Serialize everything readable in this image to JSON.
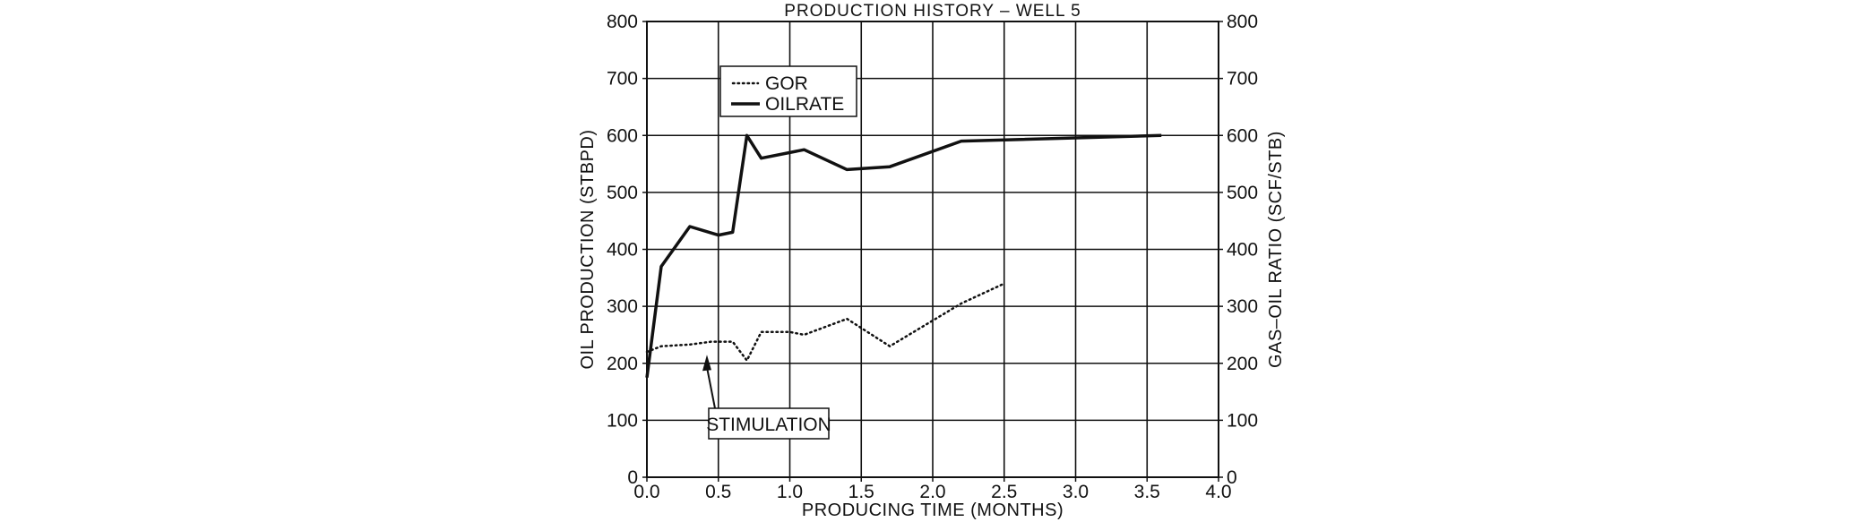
{
  "chart_data": {
    "type": "line",
    "title": "PRODUCTION HISTORY – WELL 5",
    "xlabel": "PRODUCING TIME (MONTHS)",
    "ylabel_left": "OIL PRODUCTION (STBPD)",
    "ylabel_right": "GAS–OIL RATIO (SCF/STB)",
    "xlim": [
      0,
      4.0
    ],
    "ylim_left": [
      0,
      800
    ],
    "ylim_right": [
      0,
      800
    ],
    "x_ticks": [
      "0.0",
      "0.5",
      "1.0",
      "1.5",
      "2.0",
      "2.5",
      "3.0",
      "3.5",
      "4.0"
    ],
    "y_ticks": [
      "0",
      "100",
      "200",
      "300",
      "400",
      "500",
      "600",
      "700",
      "800"
    ],
    "grid": true,
    "legend_placement": "top-left",
    "series": [
      {
        "name": "GOR",
        "style": "dotted",
        "axis": "right",
        "x": [
          0.0,
          0.1,
          0.3,
          0.45,
          0.6,
          0.7,
          0.8,
          1.0,
          1.1,
          1.4,
          1.7,
          2.2,
          2.5
        ],
        "y": [
          220,
          230,
          233,
          238,
          238,
          205,
          255,
          255,
          250,
          278,
          230,
          305,
          340
        ]
      },
      {
        "name": "OILRATE",
        "style": "solid",
        "axis": "left",
        "x": [
          0.0,
          0.1,
          0.3,
          0.5,
          0.6,
          0.7,
          0.8,
          1.1,
          1.4,
          1.7,
          2.2,
          3.6
        ],
        "y": [
          175,
          370,
          440,
          425,
          430,
          600,
          560,
          575,
          540,
          545,
          590,
          600
        ]
      }
    ],
    "annotations": [
      {
        "text": "STIMULATION",
        "x": 0.42,
        "y": 215
      }
    ]
  }
}
